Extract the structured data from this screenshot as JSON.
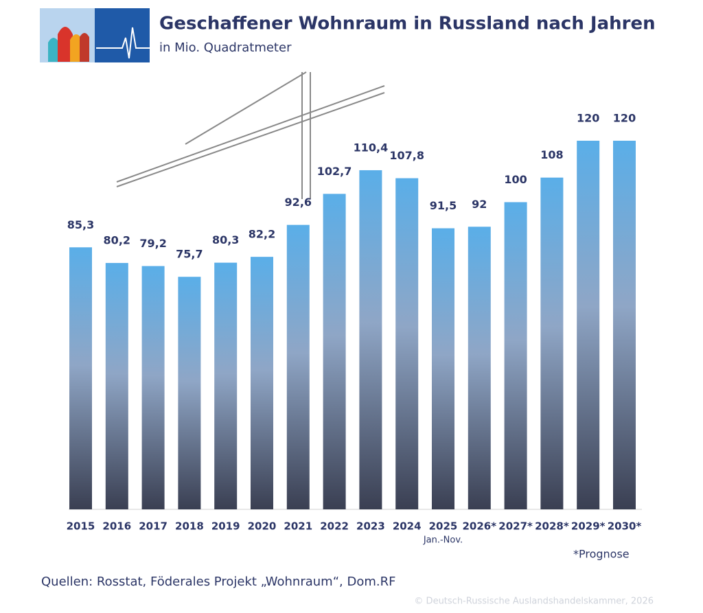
{
  "chart_data": {
    "type": "bar",
    "title": "Geschaffener Wohnraum in Russland nach Jahren",
    "subtitle": "in Mio. Quadratmeter",
    "categories": [
      "2015",
      "2016",
      "2017",
      "2018",
      "2019",
      "2020",
      "2021",
      "2022",
      "2023",
      "2024",
      "2025",
      "2026*",
      "2027*",
      "2028*",
      "2029*",
      "2030*"
    ],
    "category_note": "Jan.-Nov.",
    "values": [
      85.3,
      80.2,
      79.2,
      75.7,
      80.3,
      82.2,
      92.6,
      102.7,
      110.4,
      107.8,
      91.5,
      92,
      100,
      108,
      120,
      120
    ],
    "value_labels": [
      "85,3",
      "80,2",
      "79,2",
      "75,7",
      "80,3",
      "82,2",
      "92,6",
      "102,7",
      "110,4",
      "107,8",
      "91,5",
      "92",
      "100",
      "108",
      "120",
      "120"
    ],
    "color": "#5aaee8",
    "footnote": "*Prognose",
    "source": "Quellen: Rosstat, Föderales Projekt „Wohnraum“, Dom.RF",
    "copyright": "© Deutsch-Russische Auslandshandelskammer, 2026"
  }
}
